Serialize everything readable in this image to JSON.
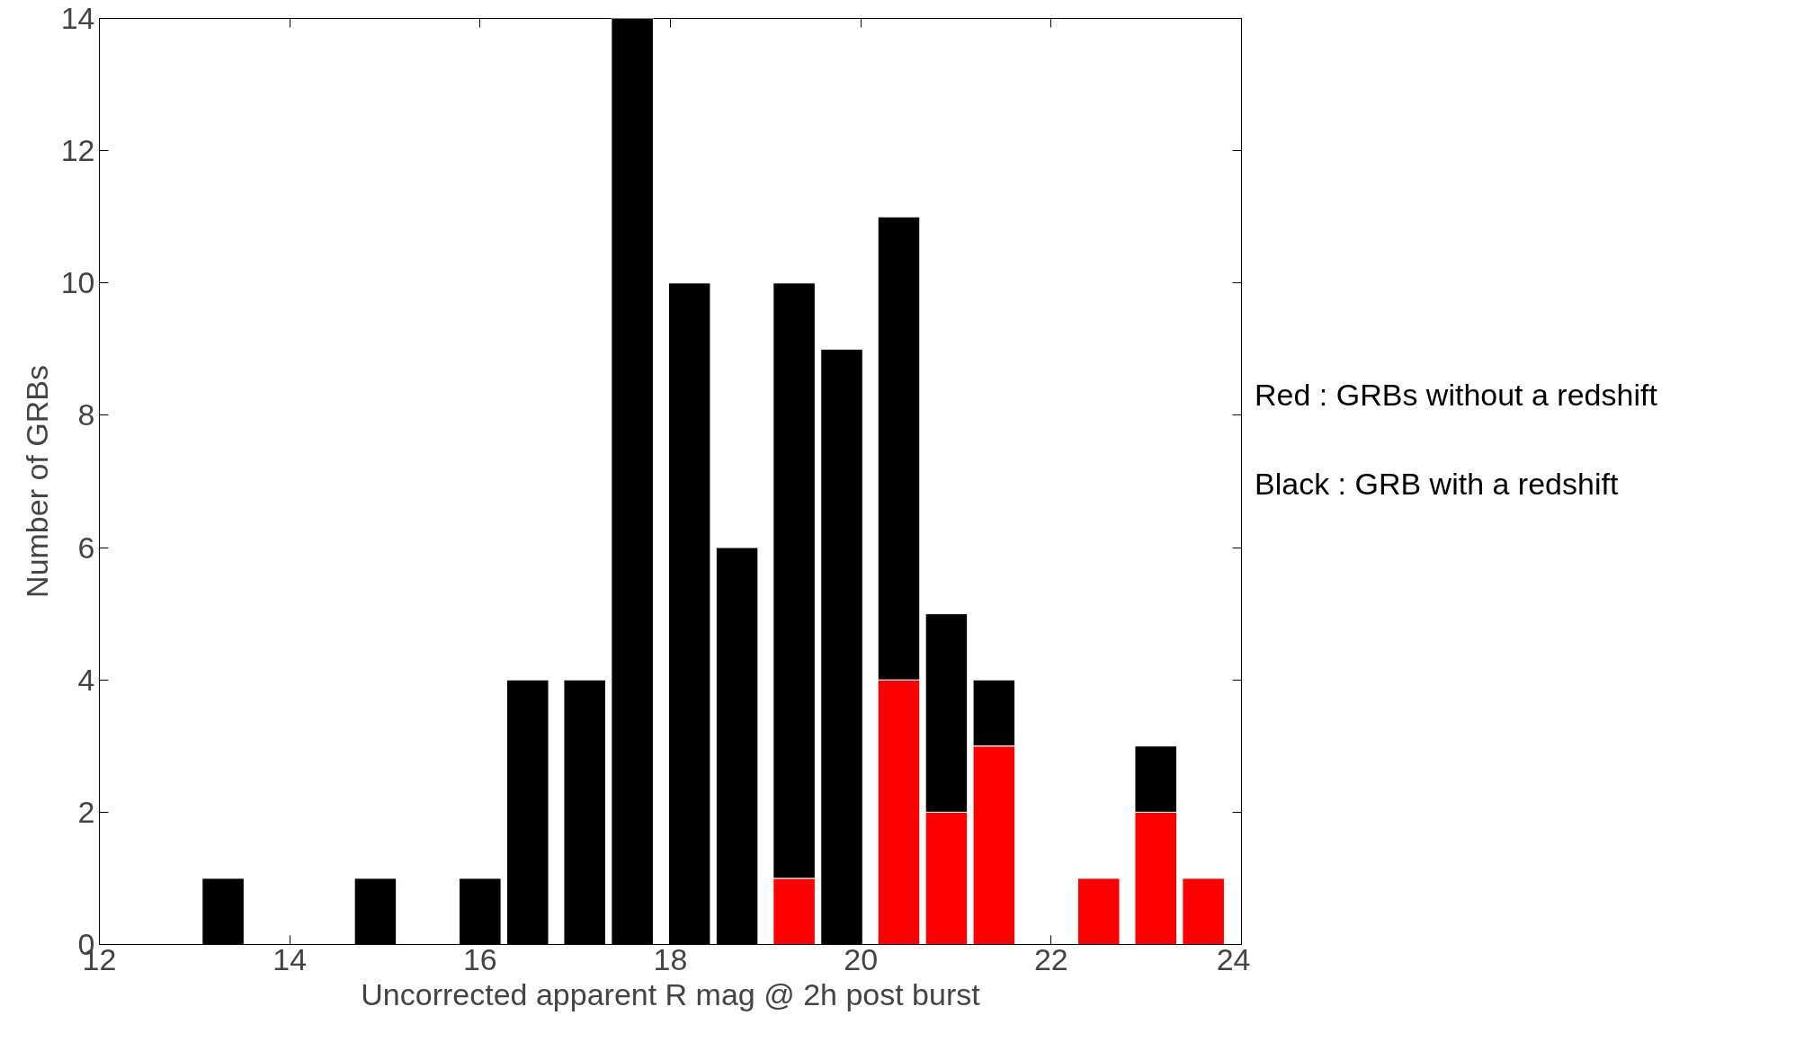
{
  "chart_data": {
    "type": "bar",
    "stacked": true,
    "x": [
      13.3,
      13.8,
      14.4,
      14.9,
      15.5,
      16.0,
      16.5,
      17.1,
      17.6,
      18.2,
      18.7,
      19.3,
      19.8,
      20.4,
      20.9,
      21.4,
      22.0,
      22.5,
      23.1,
      23.6
    ],
    "series": [
      {
        "color": "#ff0000",
        "values": [
          0,
          0,
          0,
          0,
          0,
          0,
          0,
          0,
          0,
          0,
          0,
          1,
          0,
          4,
          2,
          3,
          0,
          1,
          2,
          1
        ]
      },
      {
        "color": "#000000",
        "values": [
          1,
          0,
          0,
          1,
          0,
          1,
          4,
          4,
          14,
          10,
          6,
          9,
          9,
          7,
          3,
          1,
          0,
          0,
          1,
          0
        ]
      }
    ],
    "xlabel": "Uncorrected apparent R mag @ 2h post burst",
    "ylabel": "Number of GRBs",
    "xlim": [
      12,
      24
    ],
    "ylim": [
      0,
      14
    ],
    "xticks": [
      12,
      14,
      16,
      18,
      20,
      22,
      24
    ],
    "yticks": [
      0,
      2,
      4,
      6,
      8,
      10,
      12,
      14
    ],
    "annotations": [
      "Red : GRBs without a redshift",
      "Black : GRB with a redshift"
    ],
    "grid": false
  }
}
